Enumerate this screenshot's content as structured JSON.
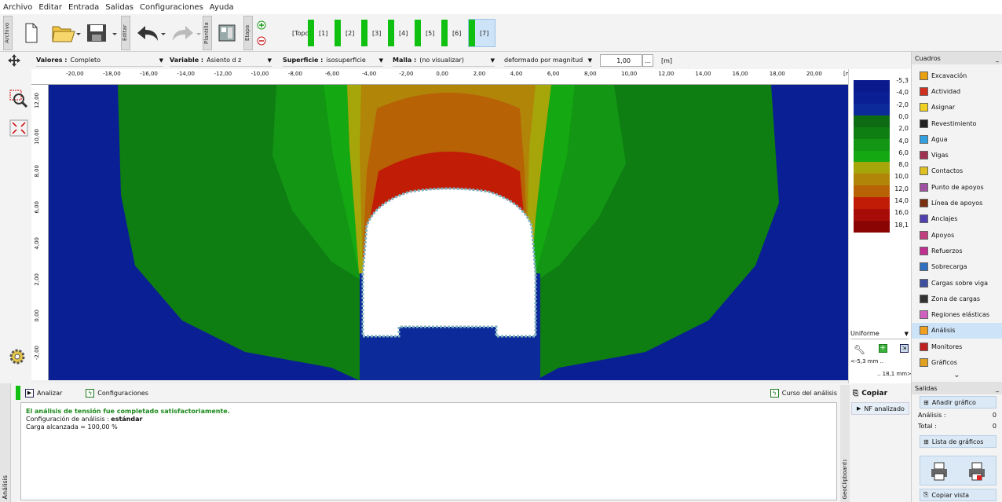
{
  "menu": [
    "Archivo",
    "Editar",
    "Entrada",
    "Salidas",
    "Configuraciones",
    "Ayuda"
  ],
  "toolbar": {
    "archivo_tab": "Archivo",
    "editar_tab": "Editar",
    "plantilla_tab": "Plantilla",
    "etapa_tab": "Etapa",
    "stages": [
      "[Topo]",
      "[1]",
      "[2]",
      "[3]",
      "[4]",
      "[5]",
      "[6]",
      "[7]"
    ]
  },
  "controls": {
    "valores_label": "Valores :",
    "valores_value": "Completo",
    "variable_label": "Variable :",
    "variable_value": "Asiento d z",
    "superficie_label": "Superficie :",
    "superficie_value": "isosuperficie",
    "malla_label": "Malla :",
    "malla_value": "(no visualizar)",
    "deformado_value": "deformado por magnitud",
    "scale_value": "1,00",
    "unit": "[m]"
  },
  "ruler": {
    "x_ticks": [
      "-20,00",
      "-18,00",
      "-16,00",
      "-14,00",
      "-12,00",
      "-10,00",
      "-8,00",
      "-6,00",
      "-4,00",
      "-2,00",
      "0,00",
      "2,00",
      "4,00",
      "6,00",
      "8,00",
      "10,00",
      "12,00",
      "14,00",
      "16,00",
      "18,00",
      "20,00",
      "[m]"
    ],
    "y_ticks": [
      "12,00",
      "10,00",
      "8,00",
      "6,00",
      "4,00",
      "2,00",
      "0,00",
      "-2,00"
    ]
  },
  "legend": {
    "labels": [
      "-5,3",
      "-4,0",
      "-2,0",
      "0,0",
      "2,0",
      "4,0",
      "6,0",
      "8,0",
      "10,0",
      "12,0",
      "14,0",
      "16,0",
      "18,1"
    ],
    "colors": [
      "#0a1a8c",
      "#0b1f94",
      "#0c2a9a",
      "#0d6b14",
      "#0e7d12",
      "#129614",
      "#14a812",
      "#a6a60a",
      "#b08508",
      "#b86206",
      "#c01c06",
      "#a80c08",
      "#8a0404"
    ],
    "mode": "Uniforme",
    "min_label": "<-5,3 mm ..",
    "max_label": ".. 18,1 mm>"
  },
  "cuadros": {
    "title": "Cuadros",
    "items": [
      "Excavación",
      "Actividad",
      "Asignar",
      "Revestimiento",
      "Agua",
      "Vigas",
      "Contactos",
      "Punto de apoyos",
      "Línea de apoyos",
      "Anclajes",
      "Apoyos",
      "Refuerzos",
      "Sobrecarga",
      "Cargas sobre viga",
      "Zona de cargas",
      "Regiones elásticas",
      "Análisis",
      "Monitores",
      "Gráficos"
    ]
  },
  "bottom": {
    "analizar": "Analizar",
    "configuraciones": "Configuraciones",
    "curso": "Curso del análisis",
    "side_tab": "Análisis",
    "msg_success": "El análisis de tensión fue completado satisfactoriamente.",
    "config_prefix": "Configuración de análisis :",
    "config_value": "estándar",
    "carga": "Carga alcanzada = 100,00 %"
  },
  "clipboard": {
    "copiar": "Copiar",
    "nf": "NF analizado",
    "side": "GeoClipboard™"
  },
  "salidas": {
    "title": "Salidas",
    "anadir": "Añadir gráfico",
    "analisis_label": "Análisis :",
    "analisis_count": "0",
    "total_label": "Total :",
    "total_count": "0",
    "lista": "Lista de gráficos",
    "copiar_vista": "Copiar vista"
  }
}
